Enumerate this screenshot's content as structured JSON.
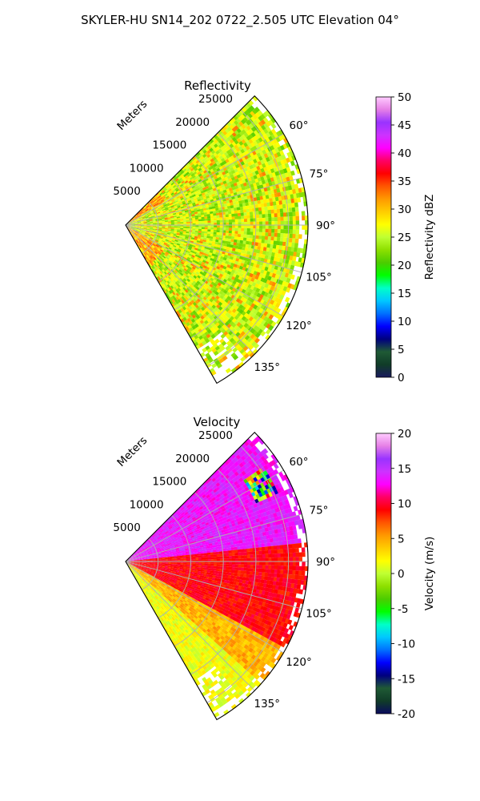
{
  "suptitle": "SKYLER-HU  SN14_202  0722_2.505 UTC Elevation 04°",
  "colors": {
    "reflectivity_scale": [
      "#1a1a5e",
      "#103c28",
      "#1f5a35",
      "#00007f",
      "#0000ff",
      "#0070ff",
      "#00c8ff",
      "#00ffc8",
      "#00ff00",
      "#4ccc00",
      "#8ee000",
      "#bfff33",
      "#ffff00",
      "#ffcc00",
      "#ff9900",
      "#ff5500",
      "#ff0000",
      "#ff0066",
      "#ff00ff",
      "#cc33ff",
      "#9933ff",
      "#e680e6",
      "#ffccff"
    ],
    "velocity_scale": [
      "#0a0a5e",
      "#103c28",
      "#1f5a35",
      "#00007f",
      "#0000ff",
      "#0070ff",
      "#00c8ff",
      "#00ffc8",
      "#00ff00",
      "#4ccc00",
      "#8ee000",
      "#bfff33",
      "#ffff00",
      "#ffcc00",
      "#ff9900",
      "#ff5500",
      "#ff0000",
      "#ff0066",
      "#ff00ff",
      "#cc33ff",
      "#9933ff",
      "#e680e6",
      "#ffccff"
    ]
  },
  "chart_data": [
    {
      "type": "heatmap",
      "title": "Reflectivity",
      "projection": "polar sector",
      "azimuth_range_deg": [
        45,
        150
      ],
      "azimuth_ticks": [
        "60°",
        "75°",
        "90°",
        "105°",
        "120°",
        "135°"
      ],
      "range_ticks": [
        "5000",
        "10000",
        "15000",
        "20000",
        "25000"
      ],
      "range_max_m": 28000,
      "range_axis_label": "Meters",
      "grid": true,
      "colorbar": {
        "label": "Reflectivity dBZ",
        "min": 0,
        "max": 50,
        "ticks": [
          "0",
          "5",
          "10",
          "15",
          "20",
          "25",
          "30",
          "35",
          "40",
          "45",
          "50"
        ]
      },
      "dominant_values": "20-28 dBZ",
      "notes": "Values up to about 35 dBZ near radar along 45-60° and 120-135° edges"
    },
    {
      "type": "heatmap",
      "title": "Velocity",
      "projection": "polar sector",
      "azimuth_range_deg": [
        45,
        150
      ],
      "azimuth_ticks": [
        "60°",
        "75°",
        "90°",
        "105°",
        "120°",
        "135°"
      ],
      "range_ticks": [
        "5000",
        "10000",
        "15000",
        "20000",
        "25000"
      ],
      "range_max_m": 28000,
      "range_axis_label": "Meters",
      "grid": true,
      "colorbar": {
        "label": "Velocity (m/s)",
        "min": -20,
        "max": 20,
        "ticks": [
          "-20",
          "-15",
          "-10",
          "-5",
          "0",
          "5",
          "10",
          "15",
          "20"
        ]
      },
      "dominant_values": "about 12-15 m/s north of 85°, about 8-10 m/s around 90-120°, about 0-3 m/s at 120-150°",
      "notes": "Small folded/noisy patch near 60° at 22000-25000 m"
    }
  ]
}
